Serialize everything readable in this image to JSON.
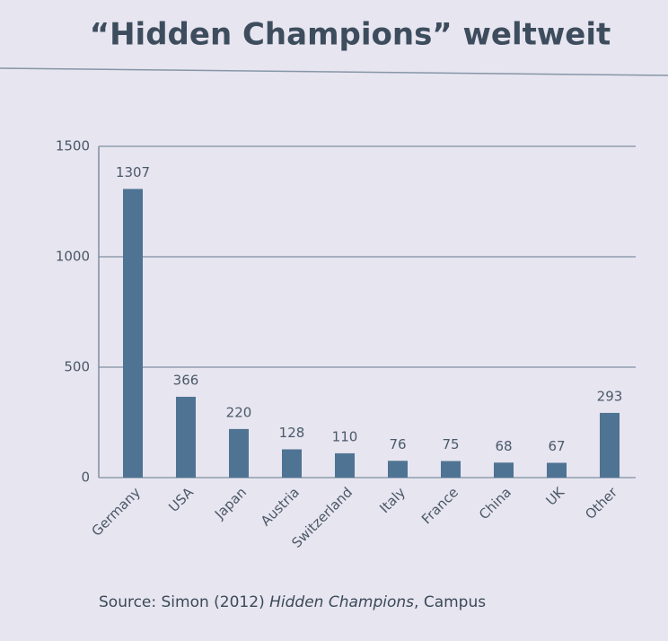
{
  "chart_data": {
    "type": "bar",
    "title": "“Hidden Champions” weltweit",
    "categories": [
      "Germany",
      "USA",
      "Japan",
      "Austria",
      "Switzerland",
      "Italy",
      "France",
      "China",
      "UK",
      "Other"
    ],
    "values": [
      1307,
      366,
      220,
      128,
      110,
      76,
      75,
      68,
      67,
      293
    ],
    "color": "#4f7393",
    "ylim": [
      0,
      1500
    ],
    "yticks": [
      0,
      500,
      1000,
      1500
    ],
    "grid": true,
    "source": [
      "Source: Simon (2012) ",
      "Hidden Champions",
      ", Campus"
    ]
  }
}
